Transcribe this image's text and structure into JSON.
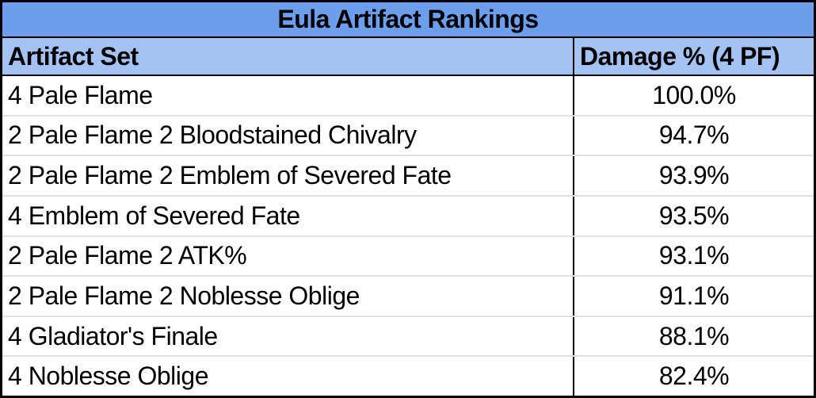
{
  "chart_data": {
    "type": "table",
    "title": "Eula Artifact Rankings",
    "columns": [
      "Artifact Set",
      "Damage % (4 PF)"
    ],
    "rows": [
      [
        "4 Pale Flame",
        "100.0%"
      ],
      [
        "2 Pale Flame 2 Bloodstained Chivalry",
        "94.7%"
      ],
      [
        "2 Pale Flame 2 Emblem of Severed Fate",
        "93.9%"
      ],
      [
        "4 Emblem of Severed Fate",
        "93.5%"
      ],
      [
        "2 Pale Flame 2 ATK%",
        "93.1%"
      ],
      [
        "2 Pale Flame 2 Noblesse Oblige",
        "91.1%"
      ],
      [
        "4 Gladiator's Finale",
        "88.1%"
      ],
      [
        "4 Noblesse Oblige",
        "82.4%"
      ]
    ],
    "values_numeric": [
      100.0,
      94.7,
      93.9,
      93.5,
      93.1,
      91.1,
      88.1,
      82.4
    ],
    "value_unit": "%"
  },
  "colors": {
    "title_bg": "#6D9EEB",
    "header_bg": "#A4C2F4",
    "row_bg": "#FFFFFF",
    "border": "#000000",
    "row_divider": "#E1E1E1",
    "text": "#000000"
  }
}
